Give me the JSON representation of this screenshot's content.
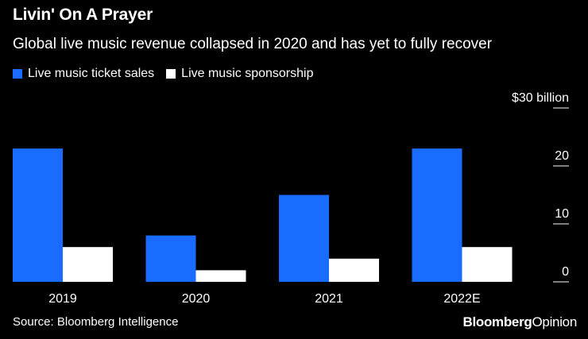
{
  "title": "Livin' On A Prayer",
  "subtitle": "Global live music revenue collapsed in 2020 and has yet to fully recover",
  "source": "Source: Bloomberg Intelligence",
  "brand": {
    "main": "Bloomberg",
    "sub": "Opinion"
  },
  "colors": {
    "ticket": "#1a6cff",
    "sponsorship": "#ffffff",
    "background": "#000000",
    "text": "#ffffff"
  },
  "chart_data": {
    "type": "bar",
    "categories": [
      "2019",
      "2020",
      "2021",
      "2022E"
    ],
    "series": [
      {
        "name": "Live music ticket sales",
        "color": "#1a6cff",
        "values": [
          23,
          8,
          15,
          23
        ]
      },
      {
        "name": "Live music sponsorship",
        "color": "#ffffff",
        "values": [
          6,
          2,
          4,
          6
        ]
      }
    ],
    "y_ticks": [
      {
        "value": 30,
        "label": "$30 billion"
      },
      {
        "value": 20,
        "label": "20"
      },
      {
        "value": 10,
        "label": "10"
      },
      {
        "value": 0,
        "label": "0"
      }
    ],
    "ylim": [
      0,
      30
    ],
    "legend_position": "top-left",
    "grid": false
  }
}
